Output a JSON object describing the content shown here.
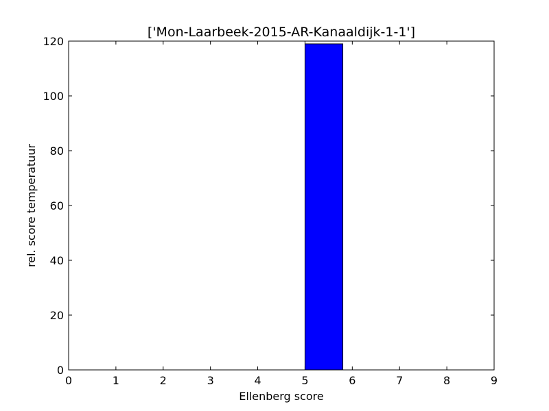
{
  "chart_data": {
    "type": "bar",
    "title": "['Mon-Laarbeek-2015-AR-Kanaaldijk-1-1']",
    "xlabel": "Ellenberg score",
    "ylabel": "rel. score temperatuur",
    "xlim": [
      0,
      9
    ],
    "ylim": [
      0,
      120
    ],
    "xticks": [
      0,
      1,
      2,
      3,
      4,
      5,
      6,
      7,
      8,
      9
    ],
    "yticks": [
      0,
      20,
      40,
      60,
      80,
      100,
      120
    ],
    "bar_width": 0.8,
    "bars": [
      {
        "x": 0,
        "value": 0
      },
      {
        "x": 1,
        "value": 0
      },
      {
        "x": 2,
        "value": 0
      },
      {
        "x": 3,
        "value": 0
      },
      {
        "x": 4,
        "value": 0
      },
      {
        "x": 5,
        "value": 119
      },
      {
        "x": 6,
        "value": 0
      },
      {
        "x": 7,
        "value": 0
      },
      {
        "x": 8,
        "value": 0
      }
    ],
    "bar_color": "#0000ff",
    "edge_color": "#000000",
    "grid": false
  }
}
